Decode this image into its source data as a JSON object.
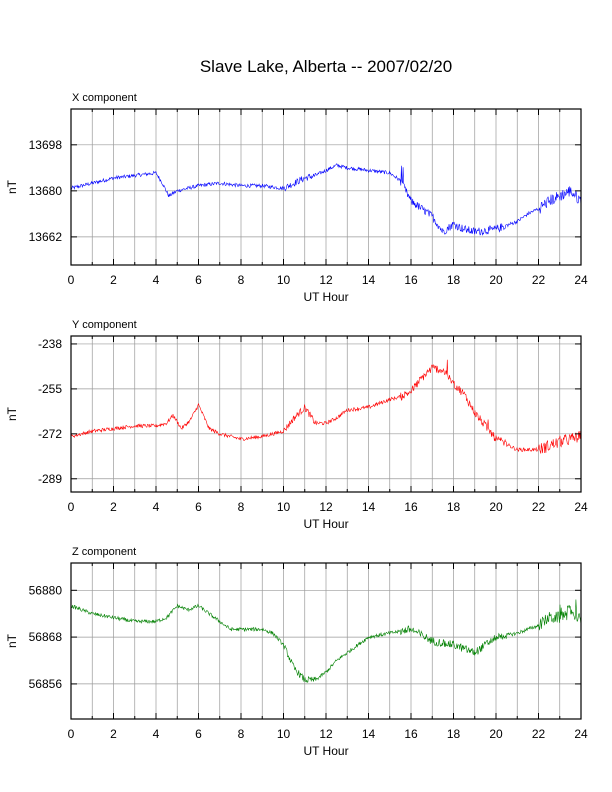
{
  "title": "Slave Lake, Alberta -- 2007/02/20",
  "chart_data": [
    {
      "type": "line",
      "panel_label": "X component",
      "xlabel": "UT Hour",
      "ylabel": "nT",
      "xlim": [
        0,
        24
      ],
      "ylim": [
        13651,
        13712
      ],
      "x_ticks": [
        "0",
        "2",
        "4",
        "6",
        "8",
        "10",
        "12",
        "14",
        "16",
        "18",
        "20",
        "22",
        "24"
      ],
      "y_ticks": [
        "13698",
        "13680",
        "13662"
      ],
      "y_tick_values": [
        13698,
        13680,
        13662
      ],
      "grid": true,
      "color": "#0000ff",
      "series": [
        {
          "x": [
            0,
            1,
            2,
            3,
            4,
            4.3,
            4.6,
            5,
            5.5,
            6,
            7,
            8,
            9,
            10,
            10.5,
            11,
            11.5,
            12,
            12.5,
            13,
            14,
            15,
            15.5,
            16,
            16.5,
            17,
            17.5,
            18,
            18.5,
            19,
            20,
            21,
            21.5,
            22,
            22.5,
            23,
            23.5,
            24
          ],
          "values": [
            13681,
            13683,
            13685,
            13686,
            13687,
            13683,
            13678,
            13680,
            13681,
            13682,
            13683,
            13682,
            13682,
            13681,
            13683,
            13685,
            13686,
            13688,
            13690,
            13689,
            13688,
            13687,
            13684,
            13676,
            13673,
            13670,
            13664,
            13667,
            13665,
            13664,
            13665,
            13668,
            13671,
            13673,
            13676,
            13678,
            13680,
            13676
          ]
        }
      ]
    },
    {
      "type": "line",
      "panel_label": "Y component",
      "xlabel": "UT Hour",
      "ylabel": "nT",
      "xlim": [
        0,
        24
      ],
      "ylim": [
        -294,
        -235
      ],
      "x_ticks": [
        "0",
        "2",
        "4",
        "6",
        "8",
        "10",
        "12",
        "14",
        "16",
        "18",
        "20",
        "22",
        "24"
      ],
      "y_ticks": [
        "-238",
        "-255",
        "-272",
        "-289"
      ],
      "y_tick_values": [
        -238,
        -255,
        -272,
        -289
      ],
      "grid": true,
      "color": "#ff0000",
      "series": [
        {
          "x": [
            0,
            1,
            2,
            3,
            4,
            4.5,
            4.8,
            5.2,
            5.6,
            6,
            6.5,
            7,
            8,
            9,
            10,
            10.5,
            11,
            11.5,
            12,
            12.5,
            13,
            14,
            15,
            15.5,
            16,
            16.5,
            17,
            17.5,
            18,
            18.5,
            19,
            20,
            21,
            22,
            23,
            24
          ],
          "values": [
            -273,
            -271,
            -270,
            -269,
            -269,
            -268,
            -265,
            -270,
            -267,
            -261,
            -270,
            -272,
            -274,
            -273,
            -271,
            -266,
            -262,
            -268,
            -268,
            -266,
            -263,
            -262,
            -259,
            -258,
            -256,
            -251,
            -247,
            -248,
            -253,
            -257,
            -264,
            -274,
            -278,
            -278,
            -275,
            -273
          ]
        }
      ]
    },
    {
      "type": "line",
      "panel_label": "Z component",
      "xlabel": "UT Hour",
      "ylabel": "nT",
      "xlim": [
        0,
        24
      ],
      "ylim": [
        56847,
        56887
      ],
      "x_ticks": [
        "0",
        "2",
        "4",
        "6",
        "8",
        "10",
        "12",
        "14",
        "16",
        "18",
        "20",
        "22",
        "24"
      ],
      "y_ticks": [
        "56880",
        "56868",
        "56856"
      ],
      "y_tick_values": [
        56880,
        56868,
        56856
      ],
      "grid": true,
      "color": "#008000",
      "series": [
        {
          "x": [
            0,
            1,
            2,
            3,
            4,
            4.5,
            5,
            5.5,
            6,
            6.5,
            7,
            7.5,
            8,
            9,
            9.5,
            10,
            10.5,
            11,
            11.5,
            12,
            12.5,
            13,
            14,
            15,
            16,
            17,
            18,
            19,
            20,
            21,
            22,
            22.5,
            23,
            23.5,
            24
          ],
          "values": [
            56876,
            56874,
            56873,
            56872,
            56872,
            56873,
            56876,
            56875,
            56876,
            56874,
            56872,
            56870,
            56870,
            56870,
            56869,
            56866,
            56860,
            56857,
            56857,
            56859,
            56862,
            56864,
            56868,
            56869,
            56870,
            56867,
            56866,
            56864,
            56868,
            56869,
            56871,
            56873,
            56873,
            56875,
            56872
          ]
        }
      ]
    }
  ]
}
